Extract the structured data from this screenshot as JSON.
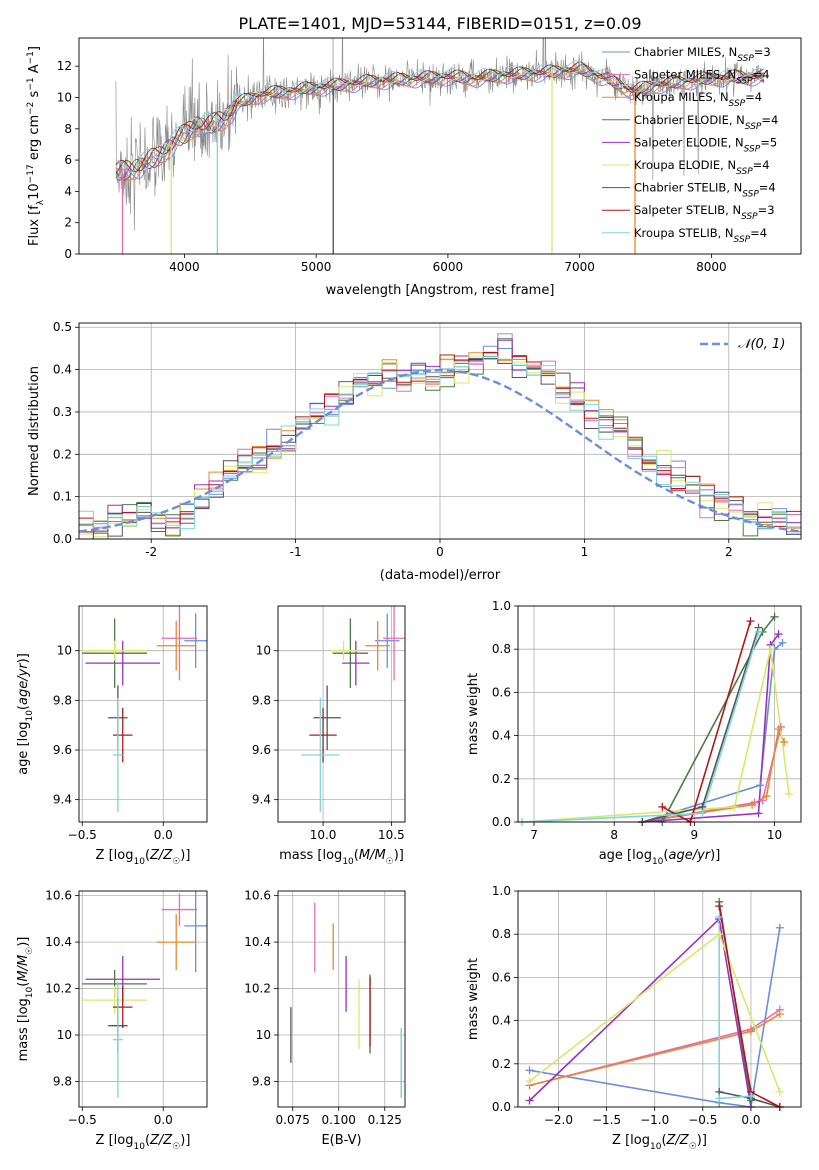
{
  "figure": {
    "title": "PLATE=1401, MJD=53144, FIBERID=0151, z=0.09"
  },
  "colors": {
    "Chabrier MILES": "#6a8fdb",
    "Salpeter MILES": "#e070b8",
    "Kroupa MILES": "#e8892c",
    "Chabrier ELODIE": "#4a7a4a",
    "Salpeter ELODIE": "#9b30c0",
    "Kroupa ELODIE": "#d8e86a",
    "Chabrier STELIB": "#555555",
    "Salpeter STELIB": "#b01818",
    "Kroupa STELIB": "#7fd6dc",
    "data": "#888888",
    "normal_curve": "#6a8fdb"
  },
  "chart_data": [
    {
      "id": "spectrum",
      "type": "line",
      "title": "PLATE=1401, MJD=53144, FIBERID=0151, z=0.09",
      "xlabel": "wavelength [Angstrom, rest frame]",
      "ylabel": "Flux [f_λ 10^-17 erg cm^-2 s^-1 A^-1]",
      "xlim": [
        3200,
        8680
      ],
      "ylim": [
        0,
        13.8
      ],
      "xticks": [
        4000,
        5000,
        6000,
        7000,
        8000
      ],
      "yticks": [
        0,
        2,
        4,
        6,
        8,
        10,
        12
      ],
      "grid": false,
      "legend_loc": "right",
      "continuum": {
        "x": [
          3500,
          3600,
          3700,
          3800,
          3900,
          4000,
          4100,
          4200,
          4300,
          4400,
          4600,
          4800,
          5000,
          5200,
          5400,
          5600,
          5800,
          6000,
          6200,
          6400,
          6600,
          6800,
          7000,
          7200,
          7400,
          7600,
          7800,
          8000,
          8200,
          8400
        ],
        "y": [
          5.2,
          5.4,
          5.8,
          6.2,
          7.0,
          7.6,
          8.3,
          8.2,
          8.6,
          9.6,
          10.2,
          10.4,
          10.6,
          10.8,
          11.0,
          11.1,
          11.2,
          11.3,
          11.2,
          11.4,
          11.5,
          11.6,
          11.8,
          11.2,
          10.4,
          10.8,
          11.0,
          11.2,
          11.3,
          11.3
        ]
      },
      "series": [
        {
          "name": "Chabrier MILES",
          "n_ssp": "3"
        },
        {
          "name": "Salpeter MILES",
          "n_ssp": "4"
        },
        {
          "name": "Kroupa MILES",
          "n_ssp": "4"
        },
        {
          "name": "Chabrier ELODIE",
          "n_ssp": "4"
        },
        {
          "name": "Salpeter ELODIE",
          "n_ssp": "5"
        },
        {
          "name": "Kroupa ELODIE",
          "n_ssp": "4"
        },
        {
          "name": "Chabrier STELIB",
          "n_ssp": "4"
        },
        {
          "name": "Salpeter STELIB",
          "n_ssp": "3"
        },
        {
          "name": "Kroupa STELIB",
          "n_ssp": "4"
        }
      ],
      "model_dropouts": [
        {
          "series": "Salpeter MILES",
          "x": 3530
        },
        {
          "series": "Kroupa ELODIE",
          "x": 3900
        },
        {
          "series": "Kroupa STELIB",
          "x": 4250
        },
        {
          "series": "Chabrier STELIB",
          "x": 5130
        },
        {
          "series": "Kroupa ELODIE",
          "x": 6790
        },
        {
          "series": "Kroupa MILES",
          "x": 7420
        }
      ]
    },
    {
      "id": "residuals",
      "type": "line",
      "xlabel": "(data-model)/error",
      "ylabel": "Normed distribution",
      "xlim": [
        -2.5,
        2.5
      ],
      "ylim": [
        0,
        0.51
      ],
      "xticks": [
        -2,
        -1,
        0,
        1,
        2
      ],
      "yticks": [
        0.0,
        0.1,
        0.2,
        0.3,
        0.4,
        0.5
      ],
      "grid": true,
      "legend_loc": "top-right",
      "legend_label": "𝒩(0, 1)",
      "bin_edges_start": -2.5,
      "bin_width": 0.1,
      "base_histogram": [
        0.02,
        0.025,
        0.04,
        0.05,
        0.07,
        0.045,
        0.04,
        0.06,
        0.09,
        0.12,
        0.16,
        0.18,
        0.18,
        0.21,
        0.23,
        0.27,
        0.29,
        0.31,
        0.34,
        0.37,
        0.37,
        0.39,
        0.38,
        0.39,
        0.38,
        0.4,
        0.4,
        0.42,
        0.45,
        0.43,
        0.41,
        0.4,
        0.39,
        0.35,
        0.34,
        0.3,
        0.28,
        0.26,
        0.22,
        0.19,
        0.16,
        0.14,
        0.12,
        0.1,
        0.09,
        0.07,
        0.06,
        0.05,
        0.04,
        0.03
      ]
    },
    {
      "id": "age_vs_Z",
      "type": "scatter",
      "xlabel": "Z [log10(Z/Z☉)]",
      "ylabel": "age [log10(age/yr)]",
      "xlim": [
        -0.52,
        0.27
      ],
      "ylim": [
        9.31,
        10.18
      ],
      "xticks": [
        -0.5,
        0.0
      ],
      "xtick_labels": [
        "−0.5",
        "0.0"
      ],
      "yticks": [
        9.4,
        9.6,
        9.8,
        10.0
      ],
      "grid": true,
      "points": [
        {
          "series": "Chabrier MILES",
          "x": 0.2,
          "xerr": 0.07,
          "y": 10.04,
          "yerr": 0.11
        },
        {
          "series": "Salpeter MILES",
          "x": 0.1,
          "xerr": 0.11,
          "y": 10.05,
          "yerr": 0.17
        },
        {
          "series": "Kroupa MILES",
          "x": 0.08,
          "xerr": 0.12,
          "y": 10.02,
          "yerr": 0.1
        },
        {
          "series": "Chabrier ELODIE",
          "x": -0.3,
          "xerr": 0.2,
          "y": 9.99,
          "yerr": 0.14
        },
        {
          "series": "Salpeter ELODIE",
          "x": -0.25,
          "xerr": 0.23,
          "y": 9.95,
          "yerr": 0.09
        },
        {
          "series": "Kroupa ELODIE",
          "x": -0.3,
          "xerr": 0.2,
          "y": 10.0,
          "yerr": 0.04
        },
        {
          "series": "Chabrier STELIB",
          "x": -0.28,
          "xerr": 0.06,
          "y": 9.73,
          "yerr": 0.13
        },
        {
          "series": "Salpeter STELIB",
          "x": -0.25,
          "xerr": 0.06,
          "y": 9.66,
          "yerr": 0.11
        },
        {
          "series": "Kroupa STELIB",
          "x": -0.28,
          "xerr": 0.03,
          "y": 9.58,
          "yerr": 0.23
        }
      ]
    },
    {
      "id": "age_vs_mass",
      "type": "scatter",
      "xlabel": "mass [log10(M/M☉)]",
      "ylabel": "",
      "xlim": [
        9.67,
        10.6
      ],
      "ylim": [
        9.31,
        10.18
      ],
      "xticks": [
        10.0,
        10.5
      ],
      "xtick_labels": [
        "10.0",
        "10.5"
      ],
      "yticks": [
        9.4,
        9.6,
        9.8,
        10.0
      ],
      "grid": true,
      "points": [
        {
          "series": "Chabrier MILES",
          "x": 10.47,
          "xerr": 0.09,
          "y": 10.04,
          "yerr": 0.11
        },
        {
          "series": "Salpeter MILES",
          "x": 10.52,
          "xerr": 0.08,
          "y": 10.05,
          "yerr": 0.17
        },
        {
          "series": "Kroupa MILES",
          "x": 10.4,
          "xerr": 0.09,
          "y": 10.02,
          "yerr": 0.1
        },
        {
          "series": "Chabrier ELODIE",
          "x": 10.2,
          "xerr": 0.13,
          "y": 9.99,
          "yerr": 0.14
        },
        {
          "series": "Salpeter ELODIE",
          "x": 10.24,
          "xerr": 0.1,
          "y": 9.95,
          "yerr": 0.09
        },
        {
          "series": "Kroupa ELODIE",
          "x": 10.15,
          "xerr": 0.1,
          "y": 10.0,
          "yerr": 0.04
        },
        {
          "series": "Chabrier STELIB",
          "x": 10.03,
          "xerr": 0.1,
          "y": 9.73,
          "yerr": 0.13
        },
        {
          "series": "Salpeter STELIB",
          "x": 10.0,
          "xerr": 0.1,
          "y": 9.66,
          "yerr": 0.11
        },
        {
          "series": "Kroupa STELIB",
          "x": 9.98,
          "xerr": 0.14,
          "y": 9.58,
          "yerr": 0.23
        }
      ]
    },
    {
      "id": "weight_vs_age",
      "type": "line",
      "xlabel": "age [log10(age/yr)]",
      "ylabel": "mass weight",
      "xlim": [
        6.8,
        10.33
      ],
      "ylim": [
        0,
        1.0
      ],
      "xticks": [
        7,
        8,
        9,
        10
      ],
      "yticks": [
        0.0,
        0.2,
        0.4,
        0.6,
        0.8,
        1.0
      ],
      "grid": true,
      "series": [
        {
          "name": "Chabrier MILES",
          "x": [
            8.35,
            9.82,
            10.0,
            10.1
          ],
          "y": [
            0.0,
            0.17,
            0.8,
            0.83
          ]
        },
        {
          "name": "Salpeter MILES",
          "x": [
            8.35,
            9.75,
            9.85,
            10.08
          ],
          "y": [
            0.0,
            0.09,
            0.1,
            0.44
          ]
        },
        {
          "name": "Kroupa MILES",
          "x": [
            8.35,
            9.72,
            9.9,
            10.05,
            10.12
          ],
          "y": [
            0.0,
            0.08,
            0.12,
            0.43,
            0.37
          ]
        },
        {
          "name": "Chabrier ELODIE",
          "x": [
            8.6,
            9.85,
            10.0
          ],
          "y": [
            0.0,
            0.88,
            0.95
          ]
        },
        {
          "name": "Salpeter ELODIE",
          "x": [
            8.35,
            9.8,
            9.95,
            10.05
          ],
          "y": [
            0.0,
            0.04,
            0.82,
            0.87
          ]
        },
        {
          "name": "Kroupa ELODIE",
          "x": [
            6.85,
            9.5,
            9.95,
            10.18
          ],
          "y": [
            0.0,
            0.07,
            0.8,
            0.13
          ]
        },
        {
          "name": "Chabrier STELIB",
          "x": [
            8.35,
            9.1,
            9.8
          ],
          "y": [
            0.0,
            0.07,
            0.9
          ]
        },
        {
          "name": "Salpeter STELIB",
          "x": [
            8.6,
            8.95,
            9.7
          ],
          "y": [
            0.07,
            0.0,
            0.93
          ]
        },
        {
          "name": "Kroupa STELIB",
          "x": [
            6.85,
            9.1,
            9.8
          ],
          "y": [
            0.0,
            0.04,
            0.88
          ]
        }
      ]
    },
    {
      "id": "mass_vs_Z",
      "type": "scatter",
      "xlabel": "Z [log10(Z/Z☉)]",
      "ylabel": "mass [log10(M/M☉)]",
      "xlim": [
        -0.52,
        0.27
      ],
      "ylim": [
        9.69,
        10.62
      ],
      "xticks": [
        -0.5,
        0.0
      ],
      "xtick_labels": [
        "−0.5",
        "0.0"
      ],
      "yticks": [
        9.8,
        10.0,
        10.2,
        10.4,
        10.6
      ],
      "grid": true,
      "points": [
        {
          "series": "Chabrier MILES",
          "x": 0.2,
          "xerr": 0.07,
          "y": 10.47,
          "yerr": 0.2
        },
        {
          "series": "Salpeter MILES",
          "x": 0.1,
          "xerr": 0.11,
          "y": 10.54,
          "yerr": 0.07
        },
        {
          "series": "Kroupa MILES",
          "x": 0.08,
          "xerr": 0.12,
          "y": 10.4,
          "yerr": 0.12
        },
        {
          "series": "Chabrier ELODIE",
          "x": -0.3,
          "xerr": 0.2,
          "y": 10.22,
          "yerr": 0.06
        },
        {
          "series": "Salpeter ELODIE",
          "x": -0.25,
          "xerr": 0.23,
          "y": 10.24,
          "yerr": 0.1
        },
        {
          "series": "Kroupa ELODIE",
          "x": -0.3,
          "xerr": 0.2,
          "y": 10.15,
          "yerr": 0.06
        },
        {
          "series": "Chabrier STELIB",
          "x": -0.28,
          "xerr": 0.06,
          "y": 10.04,
          "yerr": 0.12
        },
        {
          "series": "Salpeter STELIB",
          "x": -0.25,
          "xerr": 0.06,
          "y": 10.12,
          "yerr": 0.09
        },
        {
          "series": "Kroupa STELIB",
          "x": -0.28,
          "xerr": 0.03,
          "y": 9.98,
          "yerr": 0.25
        }
      ]
    },
    {
      "id": "mass_vs_EBV",
      "type": "scatter",
      "xlabel": "E(B-V)",
      "ylabel": "",
      "xlim": [
        0.067,
        0.136
      ],
      "ylim": [
        9.69,
        10.62
      ],
      "xticks": [
        0.075,
        0.1,
        0.125
      ],
      "xtick_labels": [
        "0.075",
        "0.100",
        "0.125"
      ],
      "yticks": [
        9.8,
        10.0,
        10.2,
        10.4,
        10.6
      ],
      "grid": true,
      "points": [
        {
          "series": "Chabrier MILES",
          "x": 0.134,
          "y": 9.88,
          "yerr": 0.15
        },
        {
          "series": "Salpeter MILES",
          "x": 0.087,
          "y": 10.42,
          "yerr": 0.15
        },
        {
          "series": "Kroupa MILES",
          "x": 0.097,
          "y": 10.38,
          "yerr": 0.1
        },
        {
          "series": "Chabrier ELODIE",
          "x": 0.117,
          "y": 10.09,
          "yerr": 0.17
        },
        {
          "series": "Salpeter ELODIE",
          "x": 0.104,
          "y": 10.22,
          "yerr": 0.12
        },
        {
          "series": "Kroupa ELODIE",
          "x": 0.111,
          "y": 10.09,
          "yerr": 0.15
        },
        {
          "series": "Chabrier STELIB",
          "x": 0.074,
          "y": 10.0,
          "yerr": 0.12
        },
        {
          "series": "Salpeter STELIB",
          "x": 0.117,
          "y": 10.1,
          "yerr": 0.15
        },
        {
          "series": "Kroupa STELIB",
          "x": 0.134,
          "y": 9.88,
          "yerr": 0.15
        }
      ]
    },
    {
      "id": "weight_vs_Z",
      "type": "line",
      "xlabel": "Z [log10(Z/Z☉)]",
      "ylabel": "mass weight",
      "xlim": [
        -2.42,
        0.52
      ],
      "ylim": [
        0,
        1.0
      ],
      "xticks": [
        -2.0,
        -1.5,
        -1.0,
        -0.5,
        0.0
      ],
      "xtick_labels": [
        "−2.0",
        "−1.5",
        "−1.0",
        "−0.5",
        "0.0"
      ],
      "yticks": [
        0.0,
        0.2,
        0.4,
        0.6,
        0.8,
        1.0
      ],
      "grid": true,
      "series": [
        {
          "name": "Chabrier MILES",
          "x": [
            -2.3,
            -0.33,
            0.0,
            0.3
          ],
          "y": [
            0.17,
            0.02,
            0.0,
            0.83
          ]
        },
        {
          "name": "Salpeter MILES",
          "x": [
            -2.3,
            0.0,
            0.3
          ],
          "y": [
            0.1,
            0.36,
            0.45
          ]
        },
        {
          "name": "Kroupa MILES",
          "x": [
            -2.3,
            0.0,
            0.3
          ],
          "y": [
            0.1,
            0.35,
            0.43
          ]
        },
        {
          "name": "Chabrier ELODIE",
          "x": [
            -0.33,
            0.0
          ],
          "y": [
            0.95,
            0.03
          ]
        },
        {
          "name": "Salpeter ELODIE",
          "x": [
            -2.3,
            -0.33,
            0.0
          ],
          "y": [
            0.03,
            0.87,
            0.0
          ]
        },
        {
          "name": "Kroupa ELODIE",
          "x": [
            -2.3,
            -0.33,
            0.3
          ],
          "y": [
            0.12,
            0.8,
            0.07
          ]
        },
        {
          "name": "Chabrier STELIB",
          "x": [
            -0.33,
            0.0,
            0.3
          ],
          "y": [
            0.07,
            0.04,
            0.0
          ]
        },
        {
          "name": "Salpeter STELIB",
          "x": [
            -0.33,
            0.0,
            0.3
          ],
          "y": [
            0.93,
            0.07,
            0.0
          ]
        },
        {
          "name": "Kroupa STELIB",
          "x": [
            -0.33,
            -0.33,
            0.0
          ],
          "y": [
            0.88,
            0.04,
            0.05
          ]
        }
      ]
    }
  ]
}
